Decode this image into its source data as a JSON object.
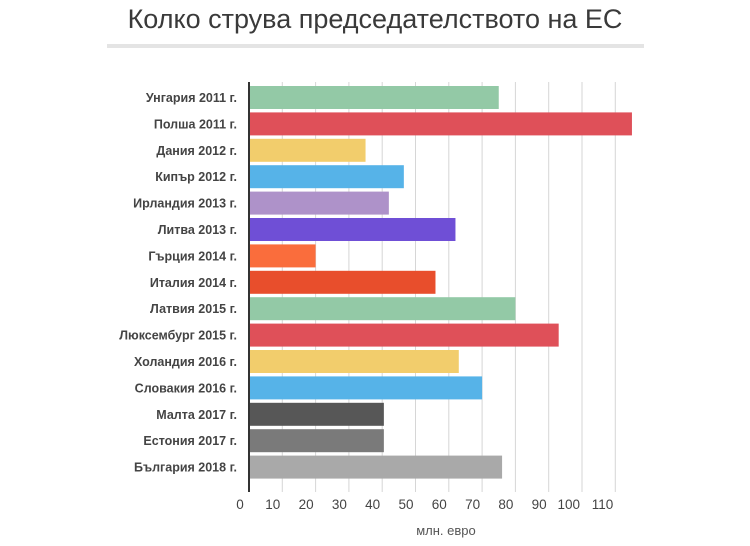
{
  "chart_data": {
    "type": "bar",
    "orientation": "horizontal",
    "title": "Колко струва председателството на ЕС",
    "xlabel": "млн. евро",
    "ylabel": "",
    "xlim": [
      0,
      120
    ],
    "ticks": [
      0,
      10,
      20,
      30,
      40,
      50,
      60,
      70,
      80,
      90,
      100,
      110
    ],
    "grid": true,
    "categories": [
      "Унгария 2011 г.",
      "Полша 2011 г.",
      "Дания 2012 г.",
      "Кипър 2012 г.",
      "Ирландия 2013 г.",
      "Литва 2013 г.",
      "Гърция 2014 г.",
      "Италия 2014 г.",
      "Латвия 2015 г.",
      "Люксембург 2015 г.",
      "Холандия 2016 г.",
      "Словакия 2016 г.",
      "Малта 2017 г.",
      "Естония 2017 г.",
      "България 2018 г."
    ],
    "values": [
      75,
      115,
      35,
      46.5,
      42,
      62,
      20,
      56,
      80,
      93,
      63,
      70,
      40.5,
      40.5,
      76
    ],
    "colors": [
      "#93c9a6",
      "#df5059",
      "#f2cd6c",
      "#56b3e8",
      "#ae92c9",
      "#6f4fd6",
      "#fa6d3c",
      "#e84e2c",
      "#93c9a6",
      "#df5059",
      "#f2cd6c",
      "#56b3e8",
      "#575757",
      "#7a7a7a",
      "#a9a9a9"
    ]
  }
}
